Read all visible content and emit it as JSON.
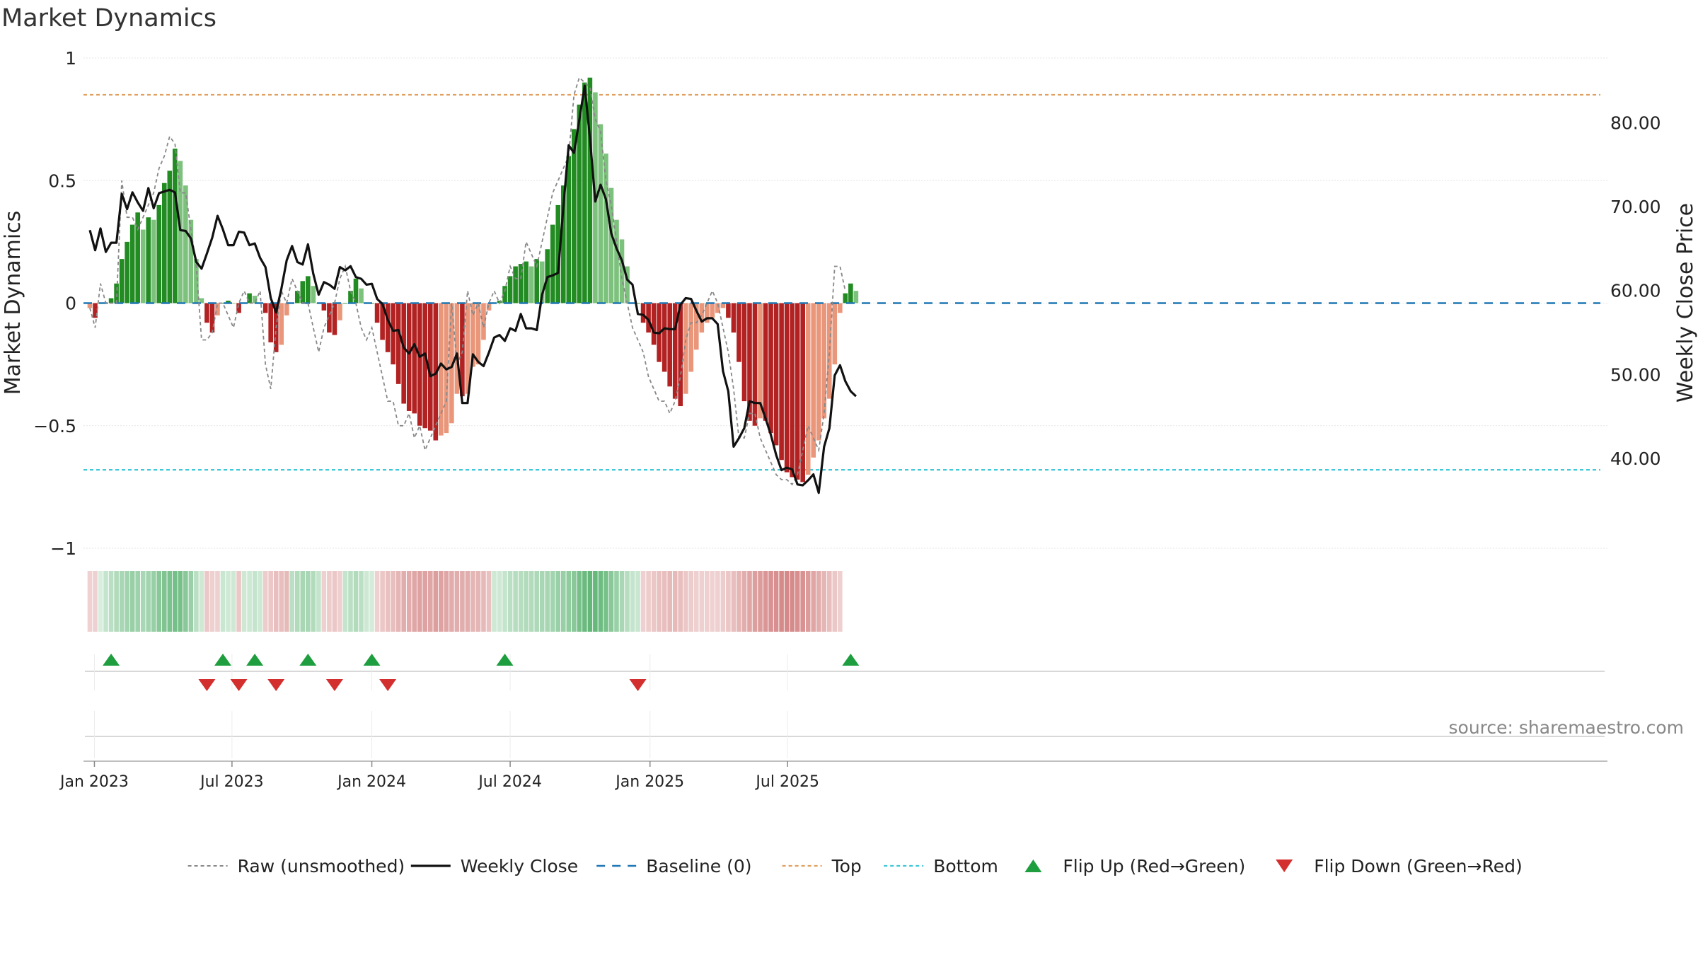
{
  "title": "Market Dynamics",
  "source": "source: sharemaestro.com",
  "colors": {
    "green_strong": "#228B22",
    "green_light": "#7CC17C",
    "red_strong": "#B22222",
    "red_light": "#E9967A",
    "top_line": "#E0A060",
    "bottom_line": "#3CC8D8",
    "baseline": "#1F77B4",
    "raw": "#888888",
    "close": "#111111",
    "flip_up": "#1E9E3E",
    "flip_down": "#D32F2F"
  },
  "chart_data": {
    "type": "bar",
    "title": "Market Dynamics",
    "ylabel": "Market Dynamics",
    "y2label": "Weekly Close Price",
    "ylim": [
      -1,
      1
    ],
    "y2lim": [
      29.3,
      87.7
    ],
    "yticks": [
      "1",
      "0.5",
      "0",
      "−0.5",
      "−1"
    ],
    "yticks_values": [
      1,
      0.5,
      0,
      -0.5,
      -1
    ],
    "y2ticks": [
      "80.00",
      "70.00",
      "60.00",
      "50.00",
      "40.00"
    ],
    "y2ticks_values": [
      80,
      70,
      60,
      50,
      40
    ],
    "xticks": [
      "Jan 2023",
      "Jul 2023",
      "Jan 2024",
      "Jul 2024",
      "Jan 2025",
      "Jul 2025"
    ],
    "xticks_dates": [
      "2023-01-01",
      "2023-07-01",
      "2024-01-01",
      "2024-07-01",
      "2025-01-01",
      "2025-07-01"
    ],
    "start_date": "2022-12-26",
    "top_level": 0.85,
    "bottom_level": -0.68,
    "baseline": 0,
    "grid": true,
    "smoothed": [
      -0.02,
      -0.06,
      0.0,
      0.0,
      0.02,
      0.08,
      0.18,
      0.25,
      0.32,
      0.37,
      0.3,
      0.35,
      0.34,
      0.4,
      0.49,
      0.54,
      0.63,
      0.58,
      0.48,
      0.34,
      0.18,
      0.02,
      -0.08,
      -0.12,
      -0.05,
      0.0,
      0.01,
      0.0,
      -0.04,
      0.0,
      0.04,
      0.03,
      0.0,
      -0.04,
      -0.16,
      -0.2,
      -0.17,
      -0.05,
      0.0,
      0.05,
      0.09,
      0.11,
      0.07,
      0.0,
      -0.03,
      -0.12,
      -0.13,
      -0.07,
      0.0,
      0.05,
      0.1,
      0.06,
      0.0,
      0.0,
      -0.08,
      -0.15,
      -0.2,
      -0.25,
      -0.33,
      -0.41,
      -0.44,
      -0.45,
      -0.5,
      -0.51,
      -0.52,
      -0.56,
      -0.54,
      -0.53,
      -0.49,
      -0.37,
      -0.38,
      -0.37,
      -0.26,
      -0.25,
      -0.15,
      -0.03,
      0.0,
      0.01,
      0.07,
      0.11,
      0.15,
      0.16,
      0.17,
      0.15,
      0.18,
      0.17,
      0.22,
      0.32,
      0.4,
      0.48,
      0.6,
      0.71,
      0.81,
      0.9,
      0.92,
      0.86,
      0.73,
      0.61,
      0.47,
      0.34,
      0.26,
      0.15,
      0.0,
      0.0,
      -0.08,
      -0.12,
      -0.17,
      -0.24,
      -0.28,
      -0.34,
      -0.39,
      -0.42,
      -0.37,
      -0.28,
      -0.19,
      -0.12,
      -0.08,
      -0.06,
      -0.04,
      -0.02,
      -0.06,
      -0.12,
      -0.24,
      -0.4,
      -0.48,
      -0.5,
      -0.47,
      -0.48,
      -0.53,
      -0.58,
      -0.64,
      -0.69,
      -0.71,
      -0.72,
      -0.73,
      -0.7,
      -0.63,
      -0.56,
      -0.47,
      -0.39,
      -0.25,
      -0.04,
      0.04,
      0.08,
      0.05
    ],
    "raw": [
      -0.02,
      -0.1,
      0.08,
      0.0,
      0.0,
      0.0,
      0.5,
      0.35,
      0.35,
      0.3,
      0.35,
      0.4,
      0.45,
      0.55,
      0.6,
      0.68,
      0.65,
      0.45,
      0.45,
      0.3,
      0.15,
      -0.15,
      -0.15,
      -0.12,
      0.0,
      0.0,
      -0.05,
      -0.1,
      0.0,
      0.05,
      0.0,
      0.0,
      0.05,
      -0.25,
      -0.35,
      -0.1,
      0.05,
      0.0,
      0.1,
      0.05,
      0.0,
      0.0,
      -0.1,
      -0.2,
      -0.1,
      -0.05,
      0.0,
      0.1,
      0.15,
      0.05,
      0.0,
      -0.1,
      -0.15,
      -0.1,
      -0.2,
      -0.3,
      -0.4,
      -0.4,
      -0.5,
      -0.5,
      -0.45,
      -0.55,
      -0.5,
      -0.6,
      -0.55,
      -0.5,
      -0.45,
      -0.4,
      0.0,
      -0.25,
      -0.2,
      0.05,
      -0.05,
      0.0,
      -0.1,
      0.0,
      0.05,
      0.0,
      0.05,
      0.15,
      0.1,
      0.1,
      0.25,
      0.2,
      0.15,
      0.25,
      0.35,
      0.45,
      0.5,
      0.55,
      0.6,
      0.85,
      0.92,
      0.9,
      0.88,
      0.75,
      0.7,
      0.5,
      0.4,
      0.25,
      0.1,
      0.0,
      -0.1,
      -0.15,
      -0.2,
      -0.3,
      -0.35,
      -0.4,
      -0.4,
      -0.45,
      -0.4,
      -0.3,
      -0.15,
      -0.08,
      -0.08,
      -0.05,
      0.0,
      0.05,
      0.0,
      -0.1,
      -0.2,
      -0.35,
      -0.55,
      -0.55,
      -0.45,
      -0.45,
      -0.55,
      -0.6,
      -0.65,
      -0.7,
      -0.72,
      -0.72,
      -0.74,
      -0.7,
      -0.6,
      -0.5,
      -0.55,
      -0.6,
      -0.45,
      -0.2,
      0.15,
      0.15,
      0.05
    ],
    "close": [
      67.2,
      64.8,
      67.4,
      64.6,
      65.7,
      65.7,
      71.5,
      69.7,
      71.7,
      70.5,
      69.5,
      72.2,
      69.8,
      71.6,
      71.8,
      72.0,
      71.7,
      67.2,
      67.1,
      66.2,
      63.4,
      62.6,
      64.4,
      66.3,
      68.9,
      67.3,
      65.4,
      65.4,
      67.0,
      66.9,
      65.4,
      65.6,
      63.9,
      62.8,
      59.1,
      57.4,
      60.2,
      63.6,
      65.3,
      63.4,
      63.1,
      65.5,
      62.0,
      59.5,
      61.0,
      60.7,
      60.2,
      62.8,
      62.4,
      62.9,
      61.6,
      61.4,
      60.7,
      60.8,
      59.0,
      58.4,
      56.5,
      55.2,
      55.3,
      53.2,
      52.5,
      53.6,
      52.1,
      52.5,
      49.8,
      50.1,
      51.3,
      50.6,
      50.9,
      52.5,
      46.6,
      46.6,
      52.4,
      51.5,
      51.0,
      52.6,
      54.4,
      54.7,
      54.0,
      55.5,
      55.2,
      57.2,
      55.5,
      55.5,
      55.3,
      59.5,
      61.6,
      61.8,
      62.1,
      70.0,
      77.3,
      76.4,
      80.3,
      84.4,
      78.1,
      70.6,
      72.6,
      70.9,
      66.8,
      65.0,
      63.6,
      61.3,
      60.7,
      57.2,
      57.1,
      56.5,
      55.0,
      54.9,
      55.5,
      55.4,
      55.4,
      58.3,
      59.1,
      59.0,
      57.6,
      56.3,
      56.7,
      56.7,
      56.0,
      50.4,
      48.0,
      41.4,
      42.4,
      43.6,
      46.8,
      46.6,
      46.6,
      44.8,
      42.8,
      40.4,
      38.6,
      38.9,
      38.7,
      36.9,
      36.8,
      37.4,
      38.1,
      35.9,
      41.4,
      43.6,
      49.9,
      51.1,
      49.2,
      48.0,
      47.4
    ],
    "strength": [
      0.28,
      0.3,
      0.22,
      0.35,
      0.4,
      0.45,
      0.5,
      0.55,
      0.62,
      0.58,
      0.5,
      0.55,
      0.62,
      0.7,
      0.75,
      0.78,
      0.82,
      0.8,
      0.7,
      0.6,
      0.4,
      0.3,
      0.35,
      0.3,
      0.3,
      0.32,
      0.28,
      0.3,
      0.35,
      0.3,
      0.3,
      0.35,
      0.3,
      0.32,
      0.35,
      0.4,
      0.4,
      0.42,
      0.4,
      0.45,
      0.5,
      0.5,
      0.45,
      0.35,
      0.3,
      0.32,
      0.34,
      0.3,
      0.35,
      0.4,
      0.45,
      0.4,
      0.3,
      0.25,
      0.3,
      0.35,
      0.38,
      0.4,
      0.45,
      0.5,
      0.52,
      0.55,
      0.58,
      0.58,
      0.55,
      0.6,
      0.58,
      0.55,
      0.52,
      0.5,
      0.5,
      0.5,
      0.45,
      0.45,
      0.42,
      0.38,
      0.3,
      0.3,
      0.35,
      0.4,
      0.42,
      0.42,
      0.45,
      0.45,
      0.48,
      0.5,
      0.52,
      0.55,
      0.6,
      0.62,
      0.65,
      0.7,
      0.8,
      0.88,
      0.92,
      0.9,
      0.85,
      0.8,
      0.7,
      0.6,
      0.5,
      0.42,
      0.35,
      0.32,
      0.3,
      0.32,
      0.35,
      0.38,
      0.4,
      0.42,
      0.42,
      0.4,
      0.35,
      0.32,
      0.3,
      0.3,
      0.3,
      0.28,
      0.3,
      0.32,
      0.35,
      0.4,
      0.45,
      0.5,
      0.55,
      0.6,
      0.62,
      0.65,
      0.68,
      0.7,
      0.72,
      0.74,
      0.72,
      0.7,
      0.68,
      0.62,
      0.55,
      0.5,
      0.45,
      0.4,
      0.35,
      0.3
    ],
    "flips_up": [
      "2023-01-23",
      "2023-06-19",
      "2023-07-31",
      "2023-10-09",
      "2024-01-01",
      "2024-06-24",
      "2025-09-22"
    ],
    "flips_down": [
      "2023-05-29",
      "2023-07-10",
      "2023-08-28",
      "2023-11-13",
      "2024-01-22",
      "2024-12-16"
    ],
    "legend": [
      {
        "label": "Raw (unsmoothed)",
        "style": "dashed-gray"
      },
      {
        "label": "Weekly Close",
        "style": "solid-black"
      },
      {
        "label": "Baseline (0)",
        "style": "dashed-blue"
      },
      {
        "label": "Top",
        "style": "dotted-orange"
      },
      {
        "label": "Bottom",
        "style": "dotted-cyan"
      },
      {
        "label": "Flip Up (Red→Green)",
        "style": "triangle-up-green"
      },
      {
        "label": "Flip Down (Green→Red)",
        "style": "triangle-down-red"
      }
    ],
    "legend_position": "bottom"
  }
}
